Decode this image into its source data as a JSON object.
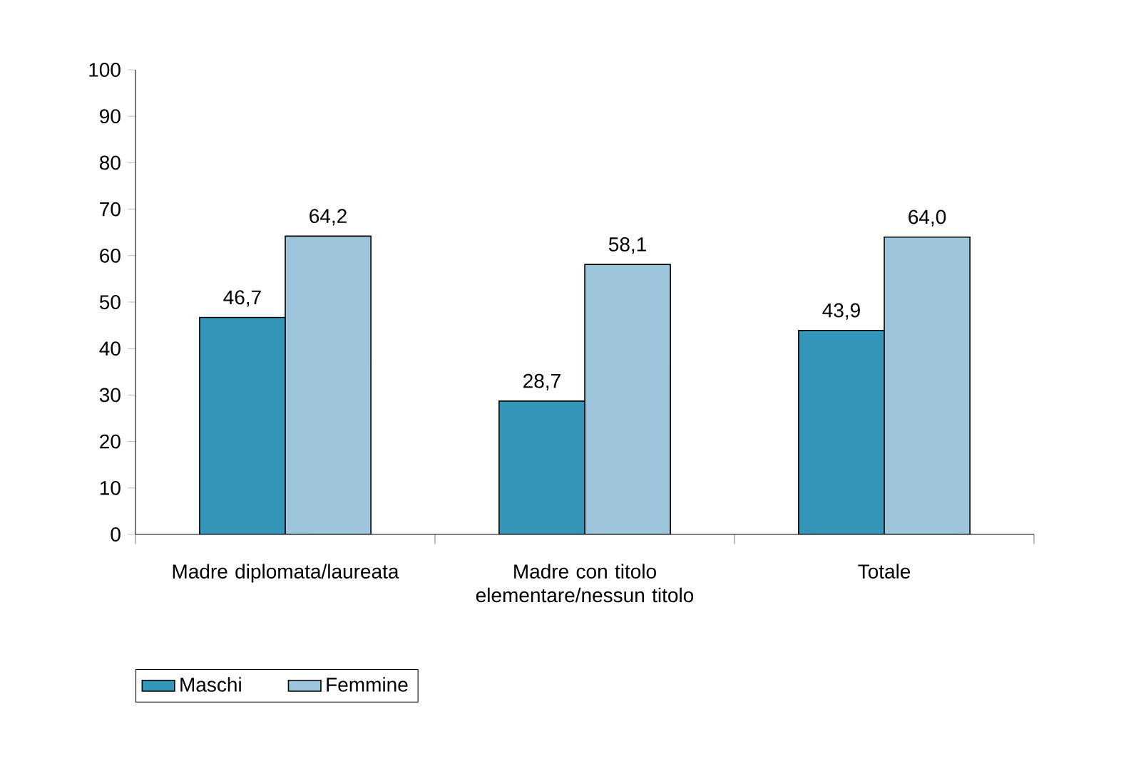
{
  "chart_data": {
    "type": "bar",
    "categories": [
      "Madre diplomata/laureata",
      "Madre con titolo elementare/nessun titolo",
      "Totale"
    ],
    "series": [
      {
        "name": "Maschi",
        "color": "#3497b9",
        "values": [
          46.7,
          28.7,
          43.9
        ],
        "value_labels": [
          "46,7",
          "28,7",
          "43,9"
        ]
      },
      {
        "name": "Femmine",
        "color": "#9cc4db",
        "values": [
          64.2,
          58.1,
          64.0
        ],
        "value_labels": [
          "64,2",
          "58,1",
          "64,0"
        ]
      }
    ],
    "ylim": [
      0,
      100
    ],
    "yticks": [
      0,
      10,
      20,
      30,
      40,
      50,
      60,
      70,
      80,
      90,
      100
    ],
    "grid": false,
    "legend": "bottom left"
  }
}
